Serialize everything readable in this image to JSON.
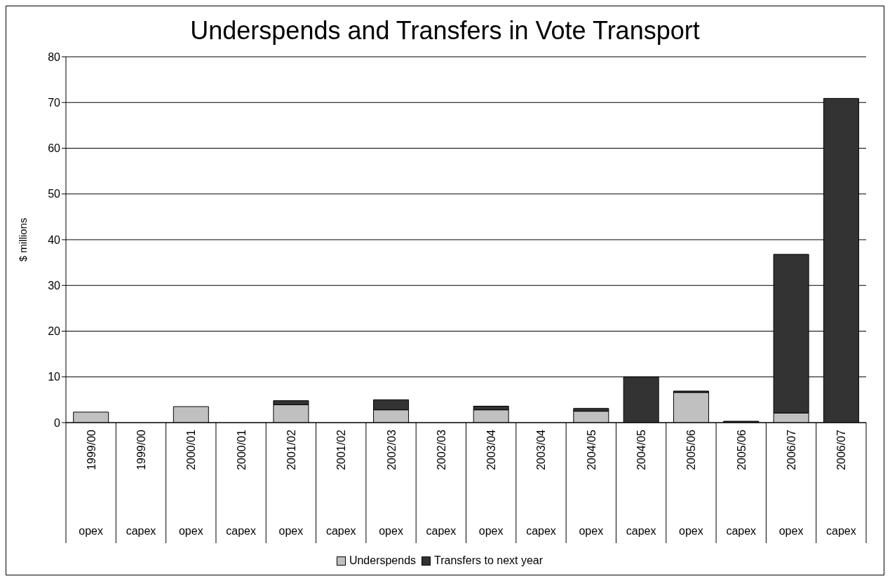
{
  "chart_data": {
    "type": "bar",
    "title": "Underspends and Transfers in Vote Transport",
    "ylabel": "$ millions",
    "categories": [
      "1999/00\nopex",
      "1999/00\ncapex",
      "2000/01\nopex",
      "2000/01\ncapex",
      "2001/02\nopex",
      "2001/02\ncapex",
      "2002/03\nopex",
      "2002/03\ncapex",
      "2003/04\nopex",
      "2003/04\ncapex",
      "2004/05\nopex",
      "2004/05\ncapex",
      "2005/06\nopex",
      "2005/06\ncapex",
      "2006/07\nopex",
      "2006/07\ncapex"
    ],
    "series": [
      {
        "name": "Underspends",
        "color": "#c0c0c0",
        "values": [
          2.3,
          0,
          3.5,
          0,
          3.9,
          0,
          2.8,
          0,
          2.8,
          0,
          2.5,
          0,
          6.6,
          0,
          2.1,
          0
        ]
      },
      {
        "name": "Transfers to next year",
        "color": "#333333",
        "values": [
          0,
          0,
          0,
          0,
          0.9,
          0,
          2.2,
          0,
          0.8,
          0,
          0.6,
          10,
          0.3,
          0.3,
          34.7,
          70.9
        ]
      }
    ],
    "stacked": true,
    "ylim": [
      0,
      80
    ],
    "yticks": [
      0,
      10,
      20,
      30,
      40,
      50,
      60,
      70,
      80
    ],
    "grid": "y",
    "legend": "bottom"
  }
}
